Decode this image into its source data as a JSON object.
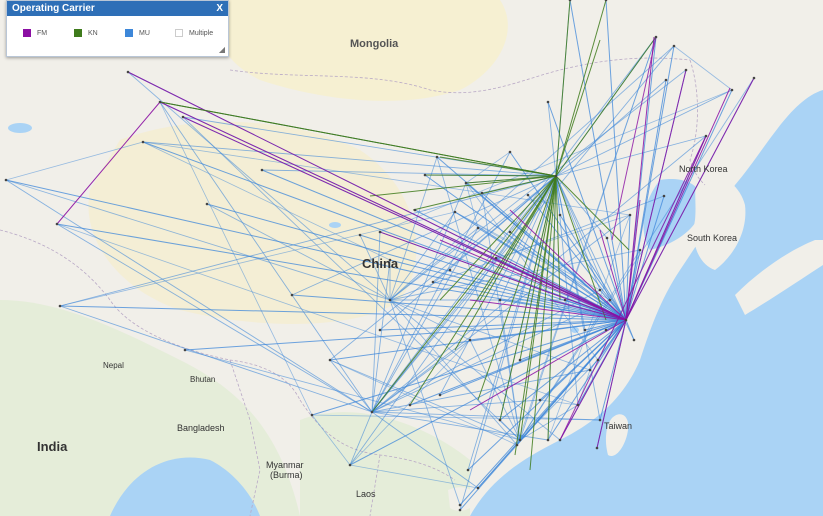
{
  "legend": {
    "title": "Operating Carrier",
    "close_label": "X",
    "items": [
      {
        "label": "FM",
        "color": "#8b0fa3"
      },
      {
        "label": "KN",
        "color": "#3f7b1c"
      },
      {
        "label": "MU",
        "color": "#3d87d9"
      },
      {
        "label": "Multiple",
        "color": "#ffffff"
      }
    ]
  },
  "labels": {
    "mongolia": "Mongolia",
    "china": "China",
    "north_korea": "North Korea",
    "south_korea": "South Korea",
    "nepal": "Nepal",
    "bhutan": "Bhutan",
    "bangladesh": "Bangladesh",
    "india": "India",
    "myanmar": "Myanmar",
    "burma": "(Burma)",
    "laos": "Laos",
    "taiwan": "Taiwan"
  },
  "colors": {
    "land": "#f1efe9",
    "desert": "#f6efcf",
    "water": "#a9d3f5",
    "mountain": "#dde8d3",
    "fm": "#8b0fa3",
    "kn": "#3f7b1c",
    "mu": "#3d87d9"
  }
}
